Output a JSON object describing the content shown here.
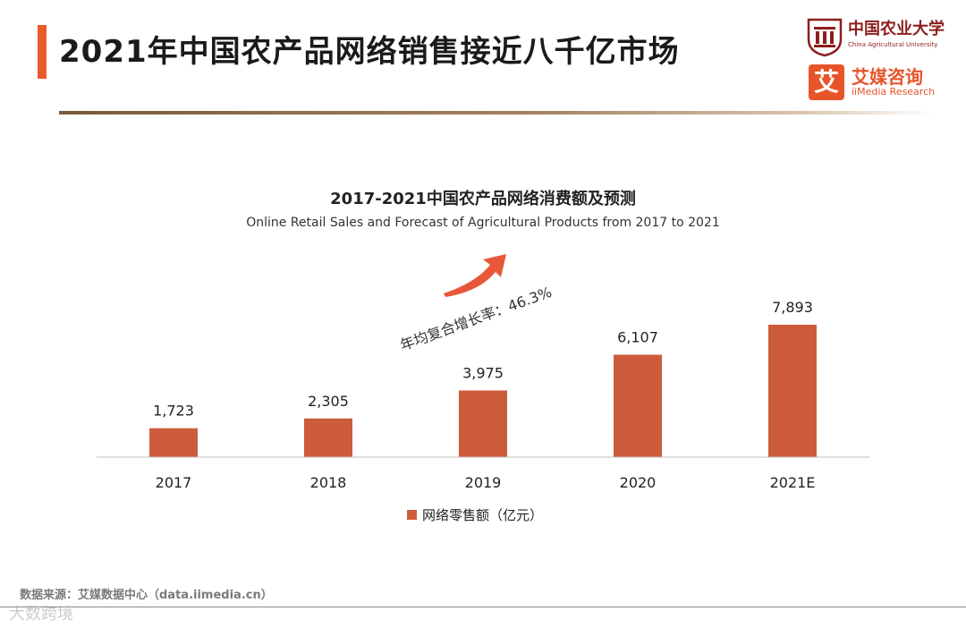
{
  "header": {
    "title": "2021年中国农产品网络销售接近八千亿市场"
  },
  "logos": {
    "university_cn": "中国农业大学",
    "university_en": "China Agricultural University",
    "imedia_badge": "艾",
    "imedia_cn": "艾媒咨询",
    "imedia_en": "iiMedia Research"
  },
  "colors": {
    "accent": "#ec5a2a",
    "bar": "#cd5c3c",
    "brand": "#e8542a"
  },
  "chart_data": {
    "type": "bar",
    "title": "2017-2021中国农产品网络消费额及预测",
    "subtitle": "Online Retail Sales and Forecast of Agricultural Products from 2017 to 2021",
    "categories": [
      "2017",
      "2018",
      "2019",
      "2020",
      "2021E"
    ],
    "series": [
      {
        "name": "网络零售额（亿元）",
        "values": [
          1723,
          2305,
          3975,
          6107,
          7893
        ],
        "labels": [
          "1,723",
          "2,305",
          "3,975",
          "6,107",
          "7,893"
        ]
      }
    ],
    "ylim": [
      0,
      8000
    ],
    "grid": false,
    "legend": "bottom-center",
    "annotation": "年均复合增长率：46.3%"
  },
  "footer": {
    "source": "数据来源：艾媒数据中心（data.iimedia.cn）",
    "watermark": "大数跨境"
  }
}
